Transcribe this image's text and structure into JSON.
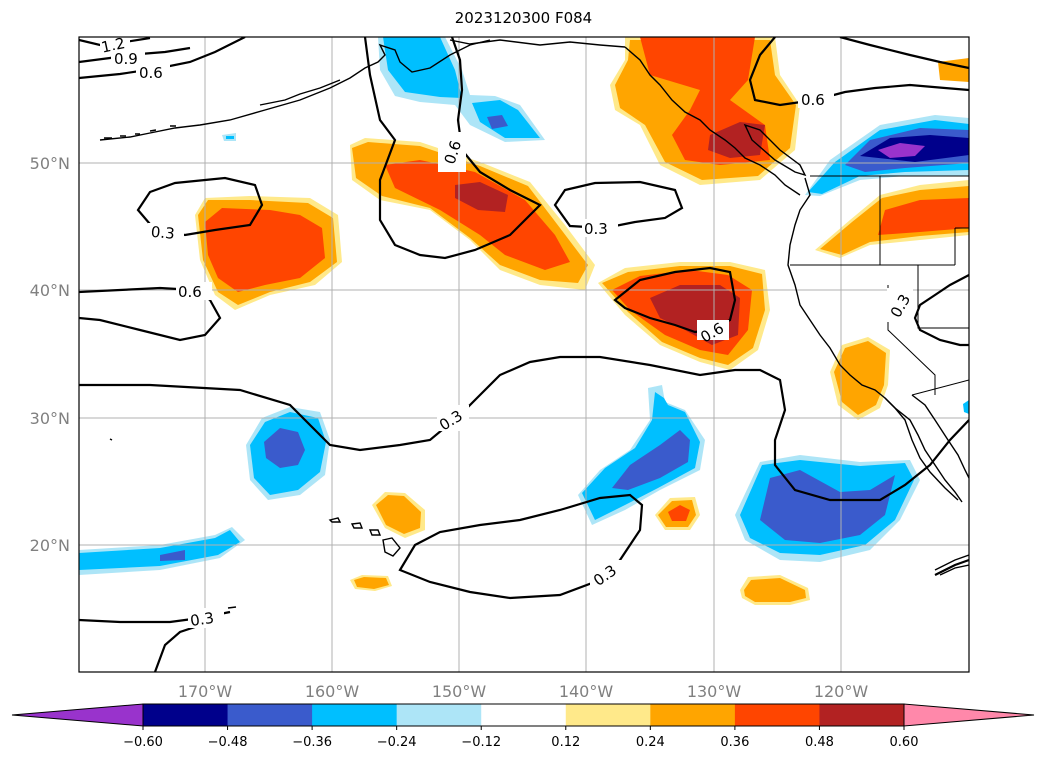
{
  "title": "2023120300 F084",
  "map": {
    "lat_labels": [
      "50°N",
      "40°N",
      "30°N",
      "20°N"
    ],
    "lon_labels": [
      "170°W",
      "160°W",
      "150°W",
      "140°W",
      "130°W",
      "120°W"
    ],
    "contour_labels": [
      "1.2",
      "0.9",
      "0.6",
      "0.6",
      "0.6",
      "0.3",
      "0.3",
      "0.6",
      "0.6",
      "0.3",
      "0.3",
      "0.3",
      "0.3"
    ]
  },
  "colorbar": {
    "ticks": [
      "−0.60",
      "−0.48",
      "−0.36",
      "−0.24",
      "−0.12",
      "0.12",
      "0.24",
      "0.36",
      "0.48",
      "0.60"
    ],
    "colors": [
      "#9933cc",
      "#00008b",
      "#3a5bcc",
      "#00bfff",
      "#ade5f7",
      "#ffffff",
      "#ffe98a",
      "#ffa500",
      "#ff4500",
      "#b22222",
      "#ff88aa"
    ]
  },
  "palette": {
    "neg_light": "#ade5f7",
    "neg_mid": "#00bfff",
    "neg_strong": "#3a5bcc",
    "neg_deep": "#00008b",
    "neg_extreme": "#9933cc",
    "pos_light": "#ffe98a",
    "pos_mid": "#ffa500",
    "pos_strong": "#ff4500",
    "pos_deep": "#b22222"
  }
}
